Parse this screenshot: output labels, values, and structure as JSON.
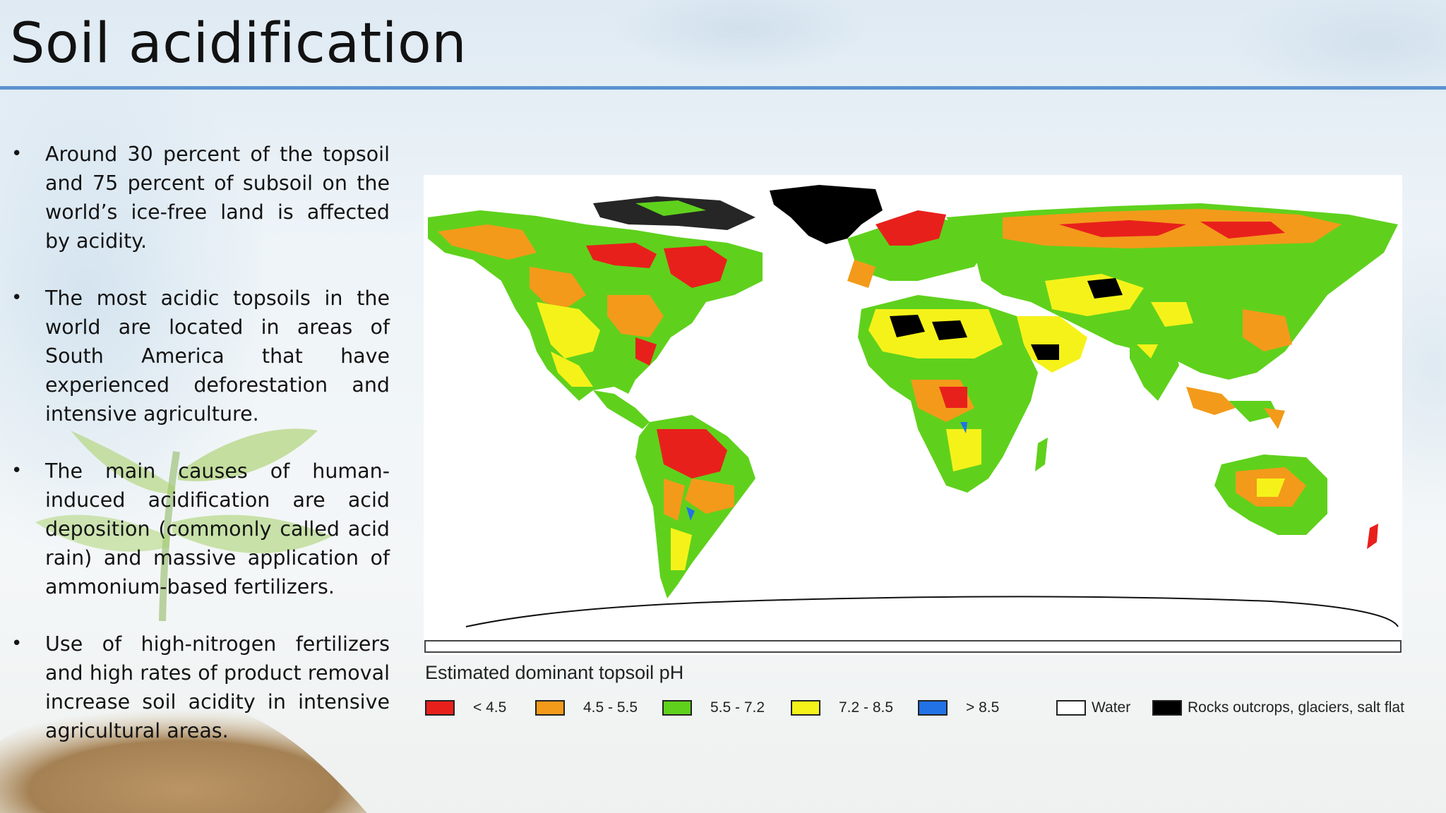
{
  "slide": {
    "title": "Soil acidification",
    "bullets": [
      "Around 30 percent of the topsoil and 75 percent of subsoil on the world’s ice-free land is affected by acidity.",
      "The most acidic topsoils in the world are located in areas of South America that have experienced deforestation and intensive agriculture.",
      "The main causes of human-induced acidification are acid deposition (commonly called acid rain) and massive application of ammonium-based fertilizers.",
      "Use of high-nitrogen fertilizers and high rates of product removal increase soil acidity in intensive agricultural areas."
    ],
    "bullet_symbol": "•"
  },
  "map": {
    "legend_title": "Estimated dominant topsoil pH",
    "legend": [
      {
        "label": "< 4.5",
        "color": "#e8201c"
      },
      {
        "label": "4.5 - 5.5",
        "color": "#f39a1a"
      },
      {
        "label": "5.5 - 7.2",
        "color": "#5fd11c"
      },
      {
        "label": "7.2 - 8.5",
        "color": "#f5f21a"
      },
      {
        "label": "> 8.5",
        "color": "#2272e6"
      },
      {
        "label": "Water",
        "color": "#ffffff"
      },
      {
        "label": "Rocks outcrops, glaciers, salt flat",
        "color": "#000000"
      }
    ]
  }
}
